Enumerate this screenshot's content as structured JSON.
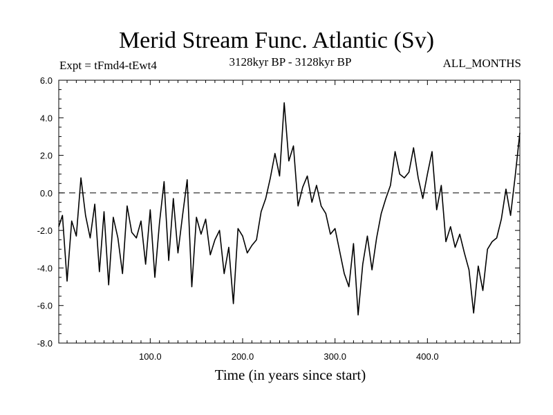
{
  "chart_data": {
    "type": "line",
    "title": "Merid Stream Func. Atlantic (Sv)",
    "subtitle": "3128kyr BP - 3128kyr BP",
    "left_label": "Expt = tFmd4-tEwt4",
    "right_label": "ALL_MONTHS",
    "xlabel": "Time (in years since start)",
    "ylabel": "",
    "xlim": [
      1,
      500
    ],
    "ylim": [
      -8.0,
      6.0
    ],
    "xticks": [
      100,
      200,
      300,
      400
    ],
    "xtick_labels": [
      "100.0",
      "200.0",
      "300.0",
      "400.0"
    ],
    "yticks": [
      6,
      4,
      2,
      0,
      -2,
      -4,
      -6,
      -8
    ],
    "ytick_labels": [
      "6.0",
      "4.0",
      "2.0",
      "0.0",
      "-2.0",
      "-4.0",
      "-6.0",
      "-8.0"
    ],
    "reference_line": {
      "y": 0,
      "style": "dashed"
    },
    "series": [
      {
        "name": "Merid Stream Func. Atlantic",
        "x": [
          1,
          5,
          10,
          15,
          20,
          25,
          30,
          35,
          40,
          45,
          50,
          55,
          60,
          65,
          70,
          75,
          80,
          85,
          90,
          95,
          100,
          105,
          110,
          115,
          120,
          125,
          130,
          135,
          140,
          145,
          150,
          155,
          160,
          165,
          170,
          175,
          180,
          185,
          190,
          195,
          200,
          205,
          210,
          215,
          220,
          225,
          230,
          235,
          240,
          245,
          250,
          255,
          260,
          265,
          270,
          275,
          280,
          285,
          290,
          295,
          300,
          305,
          310,
          315,
          320,
          325,
          330,
          335,
          340,
          345,
          350,
          355,
          360,
          365,
          370,
          375,
          380,
          385,
          390,
          395,
          400,
          405,
          410,
          415,
          420,
          425,
          430,
          435,
          440,
          445,
          450,
          455,
          460,
          465,
          470,
          475,
          480,
          485,
          490,
          495,
          500
        ],
        "values": [
          -1.8,
          -1.2,
          -4.7,
          -1.5,
          -2.3,
          0.8,
          -1.2,
          -2.4,
          -0.6,
          -4.2,
          -1.0,
          -4.9,
          -1.3,
          -2.4,
          -4.3,
          -0.7,
          -2.1,
          -2.4,
          -1.5,
          -3.8,
          -0.9,
          -4.5,
          -1.6,
          0.6,
          -3.6,
          -0.3,
          -3.2,
          -1.2,
          0.7,
          -5.0,
          -1.3,
          -2.2,
          -1.4,
          -3.3,
          -2.5,
          -2.0,
          -4.3,
          -2.9,
          -5.9,
          -1.9,
          -2.3,
          -3.2,
          -2.8,
          -2.5,
          -1.0,
          -0.3,
          0.8,
          2.1,
          0.9,
          4.8,
          1.7,
          2.5,
          -0.7,
          0.3,
          0.9,
          -0.5,
          0.4,
          -0.7,
          -1.1,
          -2.2,
          -1.9,
          -3.1,
          -4.3,
          -5.0,
          -2.7,
          -6.5,
          -3.8,
          -2.3,
          -4.1,
          -2.4,
          -1.1,
          -0.3,
          0.4,
          2.2,
          1.0,
          0.8,
          1.1,
          2.4,
          0.8,
          -0.3,
          1.0,
          2.2,
          -0.9,
          0.4,
          -2.6,
          -1.8,
          -2.9,
          -2.2,
          -3.2,
          -4.1,
          -6.4,
          -3.9,
          -5.2,
          -3.0,
          -2.6,
          -2.4,
          -1.4,
          0.2,
          -1.2,
          0.9,
          3.2
        ]
      }
    ]
  }
}
